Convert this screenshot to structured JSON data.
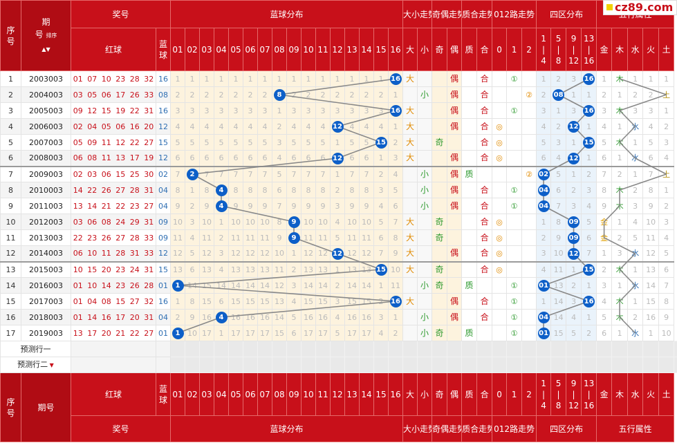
{
  "logo": "cz89.com",
  "header": {
    "seq": "序号",
    "issue": "期号",
    "sort": "排序",
    "prize": "奖号",
    "red": "红球",
    "blue": "蓝球",
    "blue_dist": "蓝球分布",
    "size_trend": "大小走势",
    "parity_trend": "奇偶走势",
    "prime_trend": "质合走势",
    "route_trend": "012路走势",
    "zone_dist": "四区分布",
    "wuxing": "五行属性",
    "blue_cols": [
      "01",
      "02",
      "03",
      "04",
      "05",
      "06",
      "07",
      "08",
      "09",
      "10",
      "11",
      "12",
      "13",
      "14",
      "15",
      "16"
    ],
    "size_cols": [
      "大",
      "小"
    ],
    "parity_cols": [
      "奇",
      "偶"
    ],
    "prime_cols": [
      "质",
      "合"
    ],
    "route_cols": [
      "0",
      "1",
      "2"
    ],
    "zone_cols": [
      [
        "1",
        "|",
        "4"
      ],
      [
        "5",
        "|",
        "8"
      ],
      [
        "9",
        "|",
        "12"
      ],
      [
        "13",
        "|",
        "16"
      ]
    ],
    "wuxing_cols": [
      "金",
      "木",
      "水",
      "火",
      "土"
    ]
  },
  "predict": [
    "预测行一",
    "预测行二"
  ],
  "rows": [
    {
      "seq": "1",
      "issue": "2003003",
      "red": "01 07 10 23 28 32",
      "blue": "16",
      "dist": [
        "1",
        "1",
        "1",
        "1",
        "1",
        "1",
        "1",
        "1",
        "1",
        "1",
        "1",
        "1",
        "1",
        "1",
        "1",
        "16"
      ],
      "size": [
        "大",
        ""
      ],
      "parity": [
        "",
        "偶"
      ],
      "prime": [
        "",
        "合"
      ],
      "route": [
        "",
        "①",
        ""
      ],
      "zone": [
        "1",
        "2",
        "3",
        "16"
      ],
      "wx": [
        "1",
        "木",
        "1",
        "1",
        "1"
      ]
    },
    {
      "seq": "2",
      "issue": "2004003",
      "red": "03 05 06 17 26 33",
      "blue": "08",
      "dist": [
        "2",
        "2",
        "2",
        "2",
        "2",
        "2",
        "2",
        "8",
        "2",
        "2",
        "2",
        "2",
        "2",
        "2",
        "2",
        "1"
      ],
      "size": [
        "",
        "小"
      ],
      "parity": [
        "",
        "偶"
      ],
      "prime": [
        "",
        "合"
      ],
      "route": [
        "",
        "",
        "②"
      ],
      "zone": [
        "2",
        "08",
        "1",
        "1"
      ],
      "wx": [
        "2",
        "1",
        "2",
        "2",
        "土"
      ]
    },
    {
      "seq": "3",
      "issue": "2005003",
      "red": "09 12 15 19 22 31",
      "blue": "16",
      "dist": [
        "3",
        "3",
        "3",
        "3",
        "3",
        "3",
        "3",
        "1",
        "3",
        "3",
        "3",
        "3",
        "3",
        "3",
        "3",
        "16"
      ],
      "size": [
        "大",
        ""
      ],
      "parity": [
        "",
        "偶"
      ],
      "prime": [
        "",
        "合"
      ],
      "route": [
        "",
        "①",
        ""
      ],
      "zone": [
        "3",
        "1",
        "3",
        "16"
      ],
      "wx": [
        "3",
        "木",
        "3",
        "3",
        "1"
      ]
    },
    {
      "seq": "4",
      "issue": "2006003",
      "red": "02 04 05 06 16 20",
      "blue": "12",
      "dist": [
        "4",
        "4",
        "4",
        "4",
        "4",
        "4",
        "4",
        "2",
        "4",
        "4",
        "4",
        "12",
        "4",
        "4",
        "4",
        "1"
      ],
      "size": [
        "大",
        ""
      ],
      "parity": [
        "",
        "偶"
      ],
      "prime": [
        "",
        "合"
      ],
      "route": [
        "◎",
        "",
        ""
      ],
      "zone": [
        "4",
        "2",
        "12",
        "1"
      ],
      "wx": [
        "4",
        "1",
        "水",
        "4",
        "2"
      ]
    },
    {
      "seq": "5",
      "issue": "2007003",
      "red": "05 09 11 12 22 27",
      "blue": "15",
      "dist": [
        "5",
        "5",
        "5",
        "5",
        "5",
        "5",
        "5",
        "3",
        "5",
        "5",
        "5",
        "1",
        "5",
        "5",
        "15",
        "2"
      ],
      "size": [
        "大",
        ""
      ],
      "parity": [
        "奇",
        ""
      ],
      "prime": [
        "",
        "合"
      ],
      "route": [
        "◎",
        "",
        ""
      ],
      "zone": [
        "5",
        "3",
        "1",
        "15"
      ],
      "wx": [
        "5",
        "木",
        "1",
        "5",
        "3"
      ]
    },
    {
      "seq": "6",
      "issue": "2008003",
      "red": "06 08 11 13 17 19",
      "blue": "12",
      "dist": [
        "6",
        "6",
        "6",
        "6",
        "6",
        "6",
        "6",
        "4",
        "6",
        "6",
        "6",
        "12",
        "6",
        "6",
        "1",
        "3"
      ],
      "size": [
        "大",
        ""
      ],
      "parity": [
        "",
        "偶"
      ],
      "prime": [
        "",
        "合"
      ],
      "route": [
        "◎",
        "",
        ""
      ],
      "zone": [
        "6",
        "4",
        "12",
        "1"
      ],
      "wx": [
        "6",
        "1",
        "水",
        "6",
        "4"
      ]
    },
    {
      "seq": "7",
      "issue": "2009003",
      "red": "02 03 06 15 25 30",
      "blue": "02",
      "dist": [
        "7",
        "2",
        "7",
        "7",
        "7",
        "7",
        "7",
        "5",
        "7",
        "7",
        "7",
        "1",
        "7",
        "7",
        "2",
        "4"
      ],
      "size": [
        "",
        "小"
      ],
      "parity": [
        "",
        "偶"
      ],
      "prime": [
        "质",
        ""
      ],
      "route": [
        "",
        "",
        "②"
      ],
      "zone": [
        "02",
        "5",
        "1",
        "2"
      ],
      "wx": [
        "7",
        "2",
        "1",
        "7",
        "土"
      ]
    },
    {
      "seq": "8",
      "issue": "2010003",
      "red": "14 22 26 27 28 31",
      "blue": "04",
      "dist": [
        "8",
        "1",
        "8",
        "4",
        "8",
        "8",
        "8",
        "6",
        "8",
        "8",
        "8",
        "2",
        "8",
        "8",
        "3",
        "5"
      ],
      "size": [
        "",
        "小"
      ],
      "parity": [
        "",
        "偶"
      ],
      "prime": [
        "",
        "合"
      ],
      "route": [
        "",
        "①",
        ""
      ],
      "zone": [
        "04",
        "6",
        "2",
        "3"
      ],
      "wx": [
        "8",
        "木",
        "2",
        "8",
        "1"
      ]
    },
    {
      "seq": "9",
      "issue": "2011003",
      "red": "13 14 21 22 23 27",
      "blue": "04",
      "dist": [
        "9",
        "2",
        "9",
        "4",
        "9",
        "9",
        "9",
        "7",
        "9",
        "9",
        "9",
        "3",
        "9",
        "9",
        "4",
        "6"
      ],
      "size": [
        "",
        "小"
      ],
      "parity": [
        "",
        "偶"
      ],
      "prime": [
        "",
        "合"
      ],
      "route": [
        "",
        "①",
        ""
      ],
      "zone": [
        "04",
        "7",
        "3",
        "4"
      ],
      "wx": [
        "9",
        "木",
        "3",
        "9",
        "2"
      ]
    },
    {
      "seq": "10",
      "issue": "2012003",
      "red": "03 06 08 24 29 31",
      "blue": "09",
      "dist": [
        "10",
        "3",
        "10",
        "1",
        "10",
        "10",
        "10",
        "8",
        "9",
        "10",
        "10",
        "4",
        "10",
        "10",
        "5",
        "7"
      ],
      "size": [
        "大",
        ""
      ],
      "parity": [
        "奇",
        ""
      ],
      "prime": [
        "",
        "合"
      ],
      "route": [
        "◎",
        "",
        ""
      ],
      "zone": [
        "1",
        "8",
        "09",
        "5"
      ],
      "wx": [
        "金",
        "1",
        "4",
        "10",
        "3"
      ]
    },
    {
      "seq": "11",
      "issue": "2013003",
      "red": "22 23 26 27 28 33",
      "blue": "09",
      "dist": [
        "11",
        "4",
        "11",
        "2",
        "11",
        "11",
        "11",
        "9",
        "9",
        "11",
        "11",
        "5",
        "11",
        "11",
        "6",
        "8"
      ],
      "size": [
        "大",
        ""
      ],
      "parity": [
        "奇",
        ""
      ],
      "prime": [
        "",
        "合"
      ],
      "route": [
        "◎",
        "",
        ""
      ],
      "zone": [
        "2",
        "9",
        "09",
        "6"
      ],
      "wx": [
        "金",
        "2",
        "5",
        "11",
        "4"
      ]
    },
    {
      "seq": "12",
      "issue": "2014003",
      "red": "06 10 11 28 31 33",
      "blue": "12",
      "dist": [
        "12",
        "5",
        "12",
        "3",
        "12",
        "12",
        "12",
        "10",
        "1",
        "12",
        "12",
        "12",
        "12",
        "12",
        "7",
        "9"
      ],
      "size": [
        "大",
        ""
      ],
      "parity": [
        "",
        "偶"
      ],
      "prime": [
        "",
        "合"
      ],
      "route": [
        "◎",
        "",
        ""
      ],
      "zone": [
        "3",
        "10",
        "12",
        "7"
      ],
      "wx": [
        "1",
        "3",
        "水",
        "12",
        "5"
      ]
    },
    {
      "seq": "13",
      "issue": "2015003",
      "red": "10 15 20 23 24 31",
      "blue": "15",
      "dist": [
        "13",
        "6",
        "13",
        "4",
        "13",
        "13",
        "13",
        "11",
        "2",
        "13",
        "13",
        "1",
        "13",
        "13",
        "15",
        "10"
      ],
      "size": [
        "大",
        ""
      ],
      "parity": [
        "奇",
        ""
      ],
      "prime": [
        "",
        "合"
      ],
      "route": [
        "◎",
        "",
        ""
      ],
      "zone": [
        "4",
        "11",
        "1",
        "15"
      ],
      "wx": [
        "2",
        "木",
        "1",
        "13",
        "6"
      ]
    },
    {
      "seq": "14",
      "issue": "2016003",
      "red": "01 10 14 23 26 28",
      "blue": "01",
      "dist": [
        "1",
        "14",
        "15",
        "14",
        "14",
        "14",
        "14",
        "12",
        "3",
        "14",
        "14",
        "2",
        "14",
        "14",
        "1",
        "11"
      ],
      "size": [
        "",
        "小"
      ],
      "parity": [
        "奇",
        ""
      ],
      "prime": [
        "质",
        ""
      ],
      "route": [
        "",
        "①",
        ""
      ],
      "zone": [
        "01",
        "13",
        "2",
        "1"
      ],
      "wx": [
        "3",
        "1",
        "水",
        "14",
        "7"
      ]
    },
    {
      "seq": "15",
      "issue": "2017003",
      "red": "01 04 08 15 27 32",
      "blue": "16",
      "dist": [
        "1",
        "8",
        "15",
        "6",
        "15",
        "15",
        "15",
        "13",
        "4",
        "15",
        "15",
        "3",
        "15",
        "15",
        "2",
        "16"
      ],
      "size": [
        "大",
        ""
      ],
      "parity": [
        "",
        "偶"
      ],
      "prime": [
        "",
        "合"
      ],
      "route": [
        "",
        "①",
        ""
      ],
      "zone": [
        "1",
        "14",
        "3",
        "16"
      ],
      "wx": [
        "4",
        "木",
        "1",
        "15",
        "8"
      ]
    },
    {
      "seq": "16",
      "issue": "2018003",
      "red": "01 14 16 17 20 31",
      "blue": "04",
      "dist": [
        "2",
        "9",
        "16",
        "4",
        "16",
        "16",
        "16",
        "14",
        "5",
        "16",
        "16",
        "4",
        "16",
        "16",
        "3",
        "1"
      ],
      "size": [
        "",
        "小"
      ],
      "parity": [
        "",
        "偶"
      ],
      "prime": [
        "",
        "合"
      ],
      "route": [
        "",
        "①",
        ""
      ],
      "zone": [
        "04",
        "14",
        "4",
        "1"
      ],
      "wx": [
        "5",
        "木",
        "2",
        "16",
        "9"
      ]
    },
    {
      "seq": "17",
      "issue": "2019003",
      "red": "13 17 20 21 22 27",
      "blue": "01",
      "dist": [
        "1",
        "10",
        "17",
        "1",
        "17",
        "17",
        "17",
        "15",
        "6",
        "17",
        "17",
        "5",
        "17",
        "17",
        "4",
        "2"
      ],
      "size": [
        "",
        "小"
      ],
      "parity": [
        "奇",
        ""
      ],
      "prime": [
        "质",
        ""
      ],
      "route": [
        "",
        "①",
        ""
      ],
      "zone": [
        "01",
        "15",
        "5",
        "2"
      ],
      "wx": [
        "6",
        "1",
        "水",
        "1",
        "10"
      ]
    }
  ]
}
